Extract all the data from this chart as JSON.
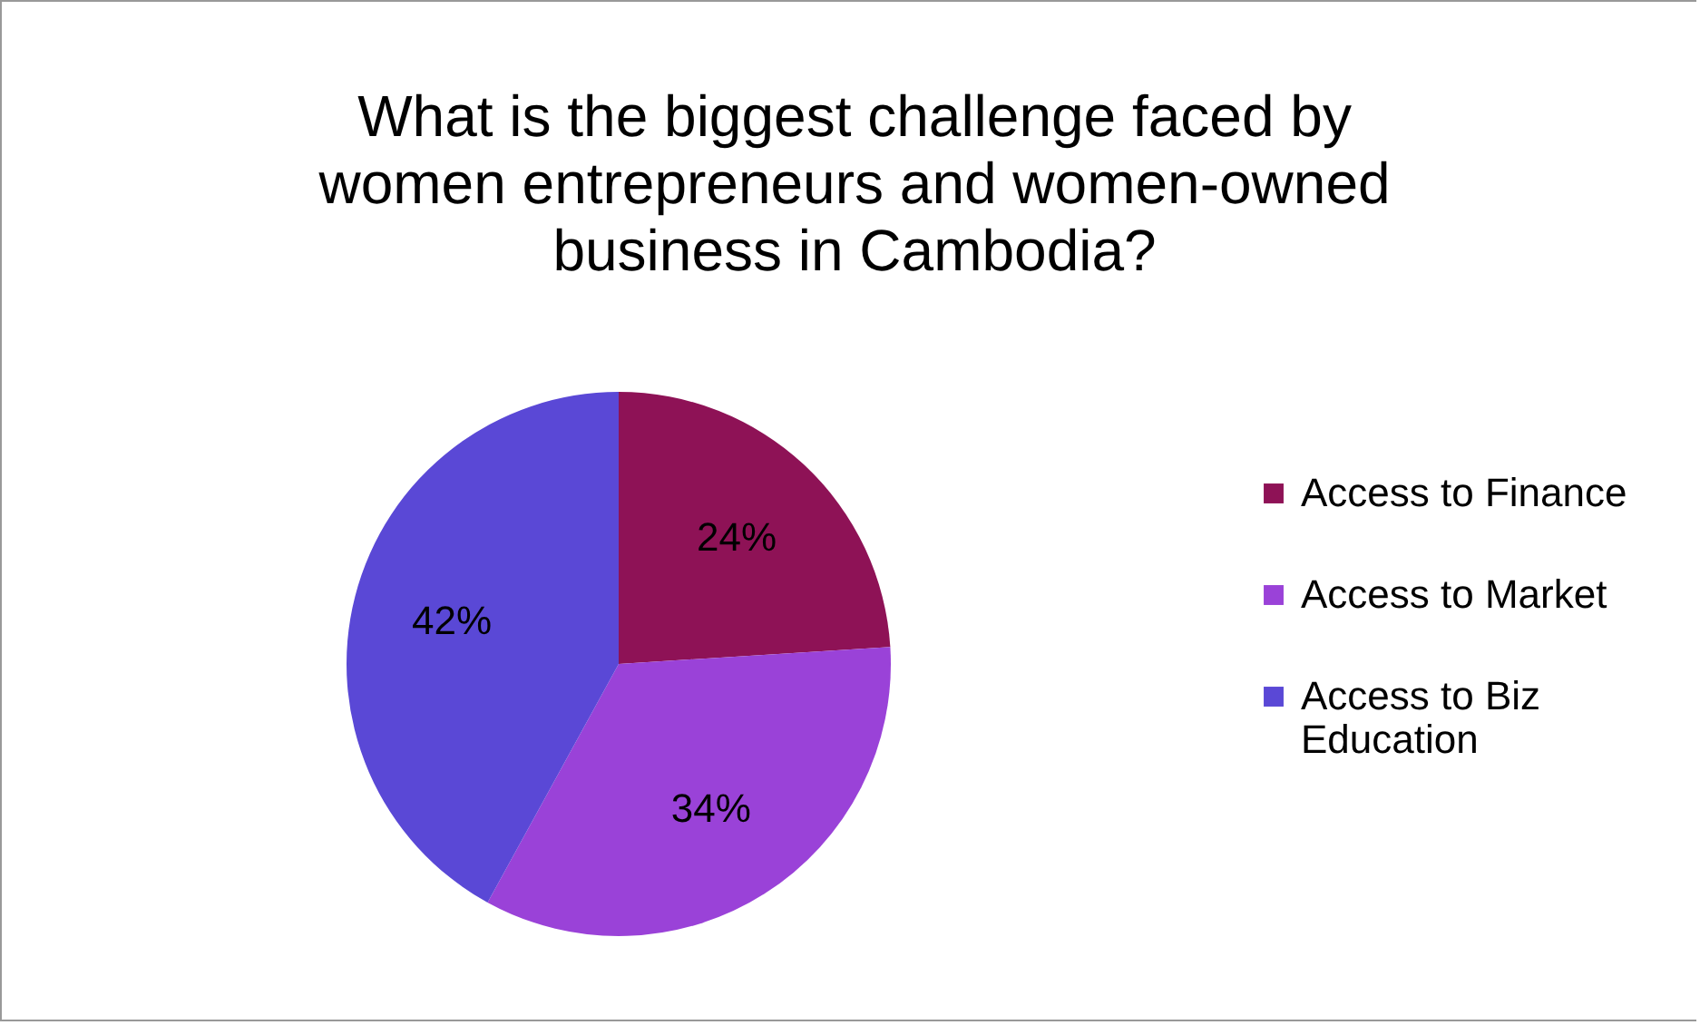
{
  "chart_data": {
    "type": "pie",
    "title": "What is the biggest challenge faced by women entrepreneurs and women-owned business in Cambodia?",
    "categories": [
      "Access to Finance",
      "Access to Market",
      "Access to Biz Education"
    ],
    "values": [
      24,
      34,
      42
    ],
    "colors": [
      "#8e1256",
      "#9a42d8",
      "#5a48d6"
    ],
    "value_labels": [
      "24%",
      "34%",
      "42%"
    ],
    "legend": "right"
  }
}
